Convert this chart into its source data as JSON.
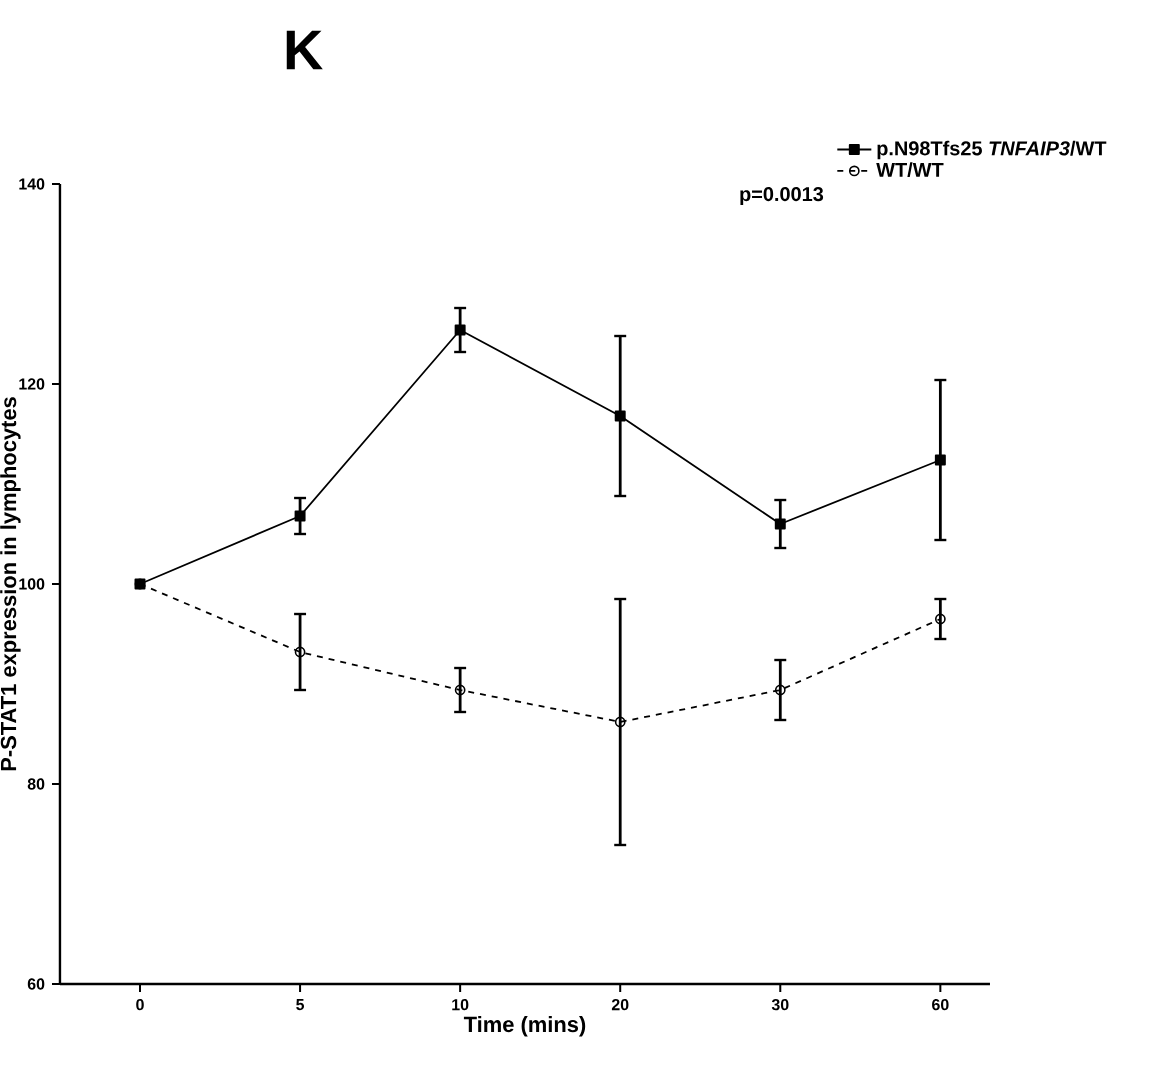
{
  "chart_data": {
    "type": "line",
    "title": "K",
    "xlabel": "Time (mins)",
    "ylabel": "P-STAT1 expression in lymphocytes",
    "categories": [
      "0",
      "5",
      "10",
      "20",
      "30",
      "60"
    ],
    "series": [
      {
        "name": "p.N98Tfs25 *TNFAIP3*/WT",
        "color": "#000000",
        "marker": "square",
        "line_style": "solid",
        "values": [
          100,
          106.8,
          125.4,
          116.8,
          106,
          112.4
        ],
        "errors": [
          null,
          1.8,
          2.2,
          8,
          2.4,
          8
        ]
      },
      {
        "name": "WT/WT",
        "color": "#000000",
        "marker": "circle",
        "line_style": "dashed",
        "values": [
          100,
          93.2,
          89.4,
          86.2,
          89.4,
          96.5
        ],
        "errors": [
          null,
          3.8,
          2.2,
          12.3,
          3,
          2
        ]
      }
    ],
    "ylim": [
      60,
      140
    ],
    "yticks": [
      60,
      80,
      100,
      120,
      140
    ],
    "grid": false,
    "legend": "top right",
    "annotations": [
      "p=0.0013"
    ]
  }
}
